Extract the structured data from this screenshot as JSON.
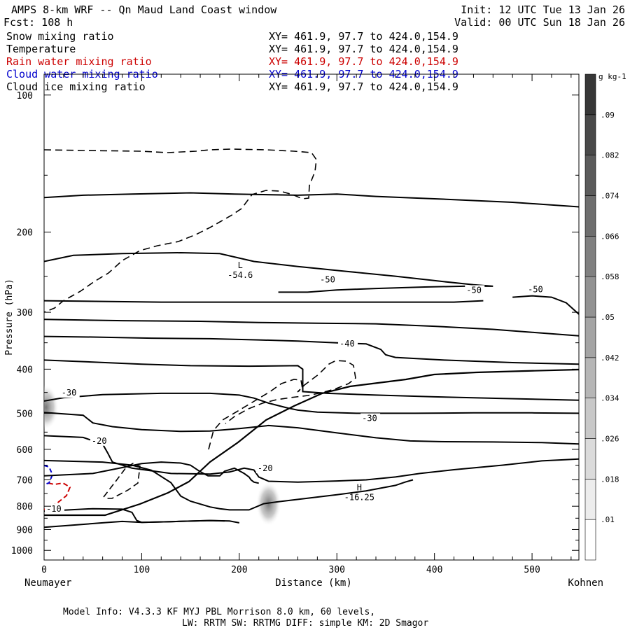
{
  "header": {
    "title": "AMPS 8-km WRF -- Qn Maud Land Coast window",
    "forecast": "Fcst:  108 h",
    "init": "Init: 12 UTC Tue 13 Jan 26",
    "valid": "Valid: 00 UTC Sun 18 Jan 26"
  },
  "fields": [
    {
      "name": "Snow mixing ratio",
      "xy": "XY= 461.9, 97.7 to 424.0,154.9",
      "color": "#000000"
    },
    {
      "name": "Temperature",
      "xy": "XY= 461.9, 97.7 to 424.0,154.9",
      "color": "#000000"
    },
    {
      "name": "Rain water mixing ratio",
      "xy": "XY= 461.9, 97.7 to 424.0,154.9",
      "color": "#cc0000"
    },
    {
      "name": "Cloud water mixing ratio",
      "xy": "XY= 461.9, 97.7 to 424.0,154.9",
      "color": "#0000cc"
    },
    {
      "name": "Cloud ice mixing ratio",
      "xy": "XY= 461.9, 97.7 to 424.0,154.9",
      "color": "#000000"
    }
  ],
  "footer": {
    "line1": "Model Info: V4.3.3   KF      MYJ PBL  Morrison              8.0 km,  60 levels,",
    "line2": "LW: RRTM SW: RRTMG   DIFF: simple KM: 2D Smagor"
  },
  "chart_data": {
    "type": "contour",
    "xlabel": "Distance (km)",
    "ylabel": "Pressure (hPa)",
    "x_start_label": "Neumayer",
    "x_end_label": "Kohnen",
    "xlim": [
      0,
      548
    ],
    "ylim": [
      1050,
      90
    ],
    "y_scale": "log",
    "x_ticks": [
      0,
      100,
      200,
      300,
      400,
      500
    ],
    "y_ticks": [
      100,
      200,
      300,
      400,
      500,
      600,
      700,
      800,
      900,
      1000
    ],
    "colorbar": {
      "unit": "g kg-1",
      "levels": [
        0.01,
        0.018,
        0.026,
        0.034,
        0.042,
        0.05,
        0.058,
        0.066,
        0.074,
        0.082,
        0.09
      ]
    },
    "contour_labels": [
      {
        "text": "-50",
        "x": 282,
        "y": 258
      },
      {
        "text": "-50",
        "x": 432,
        "y": 272
      },
      {
        "text": "-50",
        "x": 495,
        "y": 271
      },
      {
        "text": "-40",
        "x": 302,
        "y": 357
      },
      {
        "text": "-30",
        "x": 17,
        "y": 457
      },
      {
        "text": "-30",
        "x": 325,
        "y": 520
      },
      {
        "text": "-20",
        "x": 48,
        "y": 583
      },
      {
        "text": "-20",
        "x": 218,
        "y": 670
      },
      {
        "text": "-10",
        "x": 0,
        "y": 822
      }
    ],
    "extrema": [
      {
        "symbol": "L",
        "value": "-54.6",
        "x": 201,
        "y": 247
      },
      {
        "symbol": "H",
        "value": "-16.25",
        "x": 323,
        "y": 760
      }
    ],
    "temperature_isotherms_deg_c": [
      [
        [
          0,
          168
        ],
        [
          40,
          166
        ],
        [
          90,
          165
        ],
        [
          150,
          164
        ],
        [
          195,
          165
        ],
        [
          260,
          166
        ],
        [
          300,
          165
        ],
        [
          340,
          167
        ],
        [
          400,
          169
        ],
        [
          480,
          172
        ],
        [
          548,
          176
        ]
      ],
      [
        [
          0,
          232
        ],
        [
          30,
          225
        ],
        [
          80,
          223
        ],
        [
          140,
          222
        ],
        [
          180,
          223
        ],
        [
          215,
          232
        ],
        [
          260,
          238
        ],
        [
          310,
          244
        ],
        [
          360,
          250
        ],
        [
          410,
          257
        ],
        [
          440,
          261
        ],
        [
          460,
          263
        ],
        [
          430,
          263
        ],
        [
          390,
          264
        ],
        [
          340,
          266
        ],
        [
          300,
          268
        ],
        [
          270,
          271
        ],
        [
          240,
          271
        ]
      ],
      [
        [
          0,
          283
        ],
        [
          60,
          284
        ],
        [
          120,
          285
        ],
        [
          180,
          285
        ],
        [
          240,
          285
        ],
        [
          300,
          285
        ],
        [
          360,
          285
        ],
        [
          420,
          285
        ],
        [
          450,
          283
        ]
      ],
      [
        [
          480,
          278
        ],
        [
          500,
          276
        ],
        [
          520,
          278
        ],
        [
          535,
          286
        ],
        [
          548,
          303
        ]
      ],
      [
        [
          0,
          311
        ],
        [
          80,
          313
        ],
        [
          160,
          314
        ],
        [
          220,
          316
        ],
        [
          280,
          317
        ],
        [
          340,
          318
        ],
        [
          400,
          322
        ],
        [
          460,
          327
        ],
        [
          500,
          332
        ],
        [
          548,
          338
        ]
      ],
      [
        [
          0,
          339
        ],
        [
          50,
          340
        ],
        [
          110,
          342
        ],
        [
          170,
          343
        ],
        [
          220,
          345
        ],
        [
          260,
          347
        ],
        [
          300,
          350
        ],
        [
          330,
          352
        ],
        [
          345,
          362
        ],
        [
          350,
          372
        ],
        [
          360,
          377
        ],
        [
          410,
          382
        ],
        [
          480,
          387
        ],
        [
          548,
          390
        ]
      ],
      [
        [
          0,
          382
        ],
        [
          40,
          385
        ],
        [
          100,
          390
        ],
        [
          150,
          393
        ],
        [
          210,
          394
        ],
        [
          260,
          393
        ],
        [
          265,
          400
        ],
        [
          265,
          448
        ],
        [
          290,
          452
        ],
        [
          340,
          456
        ],
        [
          400,
          460
        ],
        [
          470,
          464
        ],
        [
          548,
          468
        ]
      ],
      [
        [
          0,
          470
        ],
        [
          20,
          462
        ],
        [
          60,
          455
        ],
        [
          120,
          452
        ],
        [
          170,
          452
        ],
        [
          200,
          456
        ],
        [
          215,
          463
        ],
        [
          230,
          475
        ],
        [
          250,
          487
        ],
        [
          260,
          492
        ],
        [
          280,
          497
        ],
        [
          320,
          500
        ],
        [
          380,
          500
        ],
        [
          440,
          499
        ],
        [
          500,
          499
        ],
        [
          548,
          500
        ]
      ],
      [
        [
          0,
          498
        ],
        [
          40,
          505
        ],
        [
          50,
          525
        ],
        [
          70,
          535
        ],
        [
          100,
          543
        ],
        [
          140,
          548
        ],
        [
          170,
          547
        ],
        [
          200,
          540
        ],
        [
          230,
          532
        ],
        [
          260,
          538
        ],
        [
          300,
          552
        ],
        [
          340,
          566
        ],
        [
          375,
          575
        ],
        [
          405,
          577
        ],
        [
          460,
          578
        ],
        [
          510,
          580
        ],
        [
          548,
          584
        ]
      ],
      [
        [
          0,
          560
        ],
        [
          40,
          565
        ],
        [
          60,
          584
        ],
        [
          65,
          610
        ],
        [
          70,
          640
        ],
        [
          90,
          660
        ],
        [
          130,
          678
        ],
        [
          170,
          680
        ],
        [
          190,
          673
        ],
        [
          205,
          660
        ],
        [
          215,
          666
        ],
        [
          220,
          690
        ],
        [
          230,
          705
        ],
        [
          260,
          708
        ],
        [
          300,
          704
        ],
        [
          330,
          700
        ],
        [
          360,
          690
        ],
        [
          385,
          678
        ],
        [
          420,
          665
        ],
        [
          470,
          650
        ],
        [
          510,
          636
        ],
        [
          548,
          630
        ]
      ],
      [
        [
          0,
          686
        ],
        [
          50,
          678
        ],
        [
          80,
          658
        ],
        [
          100,
          645
        ],
        [
          120,
          640
        ],
        [
          140,
          643
        ],
        [
          150,
          650
        ],
        [
          160,
          672
        ],
        [
          168,
          686
        ],
        [
          180,
          686
        ],
        [
          185,
          670
        ],
        [
          195,
          660
        ],
        [
          205,
          678
        ],
        [
          210,
          690
        ],
        [
          212,
          700
        ],
        [
          215,
          708
        ],
        [
          220,
          712
        ]
      ],
      [
        [
          0,
          635
        ],
        [
          60,
          640
        ],
        [
          90,
          650
        ],
        [
          110,
          667
        ],
        [
          130,
          710
        ],
        [
          140,
          760
        ],
        [
          150,
          780
        ],
        [
          170,
          803
        ],
        [
          180,
          810
        ],
        [
          190,
          815
        ],
        [
          210,
          815
        ],
        [
          225,
          790
        ],
        [
          240,
          782
        ],
        [
          270,
          768
        ],
        [
          300,
          755
        ],
        [
          330,
          740
        ],
        [
          360,
          720
        ],
        [
          370,
          708
        ],
        [
          378,
          700
        ]
      ],
      [
        [
          0,
          820
        ],
        [
          50,
          810
        ],
        [
          80,
          812
        ],
        [
          90,
          825
        ],
        [
          95,
          860
        ],
        [
          100,
          868
        ],
        [
          130,
          865
        ],
        [
          170,
          860
        ],
        [
          190,
          862
        ],
        [
          200,
          870
        ]
      ],
      [
        [
          0,
          890
        ],
        [
          30,
          880
        ],
        [
          60,
          870
        ],
        [
          80,
          864
        ],
        [
          100,
          868
        ],
        [
          130,
          865
        ],
        [
          170,
          860
        ],
        [
          185,
          862
        ]
      ]
    ],
    "cloud_ice_regions": [
      {
        "x": 2,
        "y": 485
      },
      {
        "x": 230,
        "y": 790
      }
    ]
  }
}
